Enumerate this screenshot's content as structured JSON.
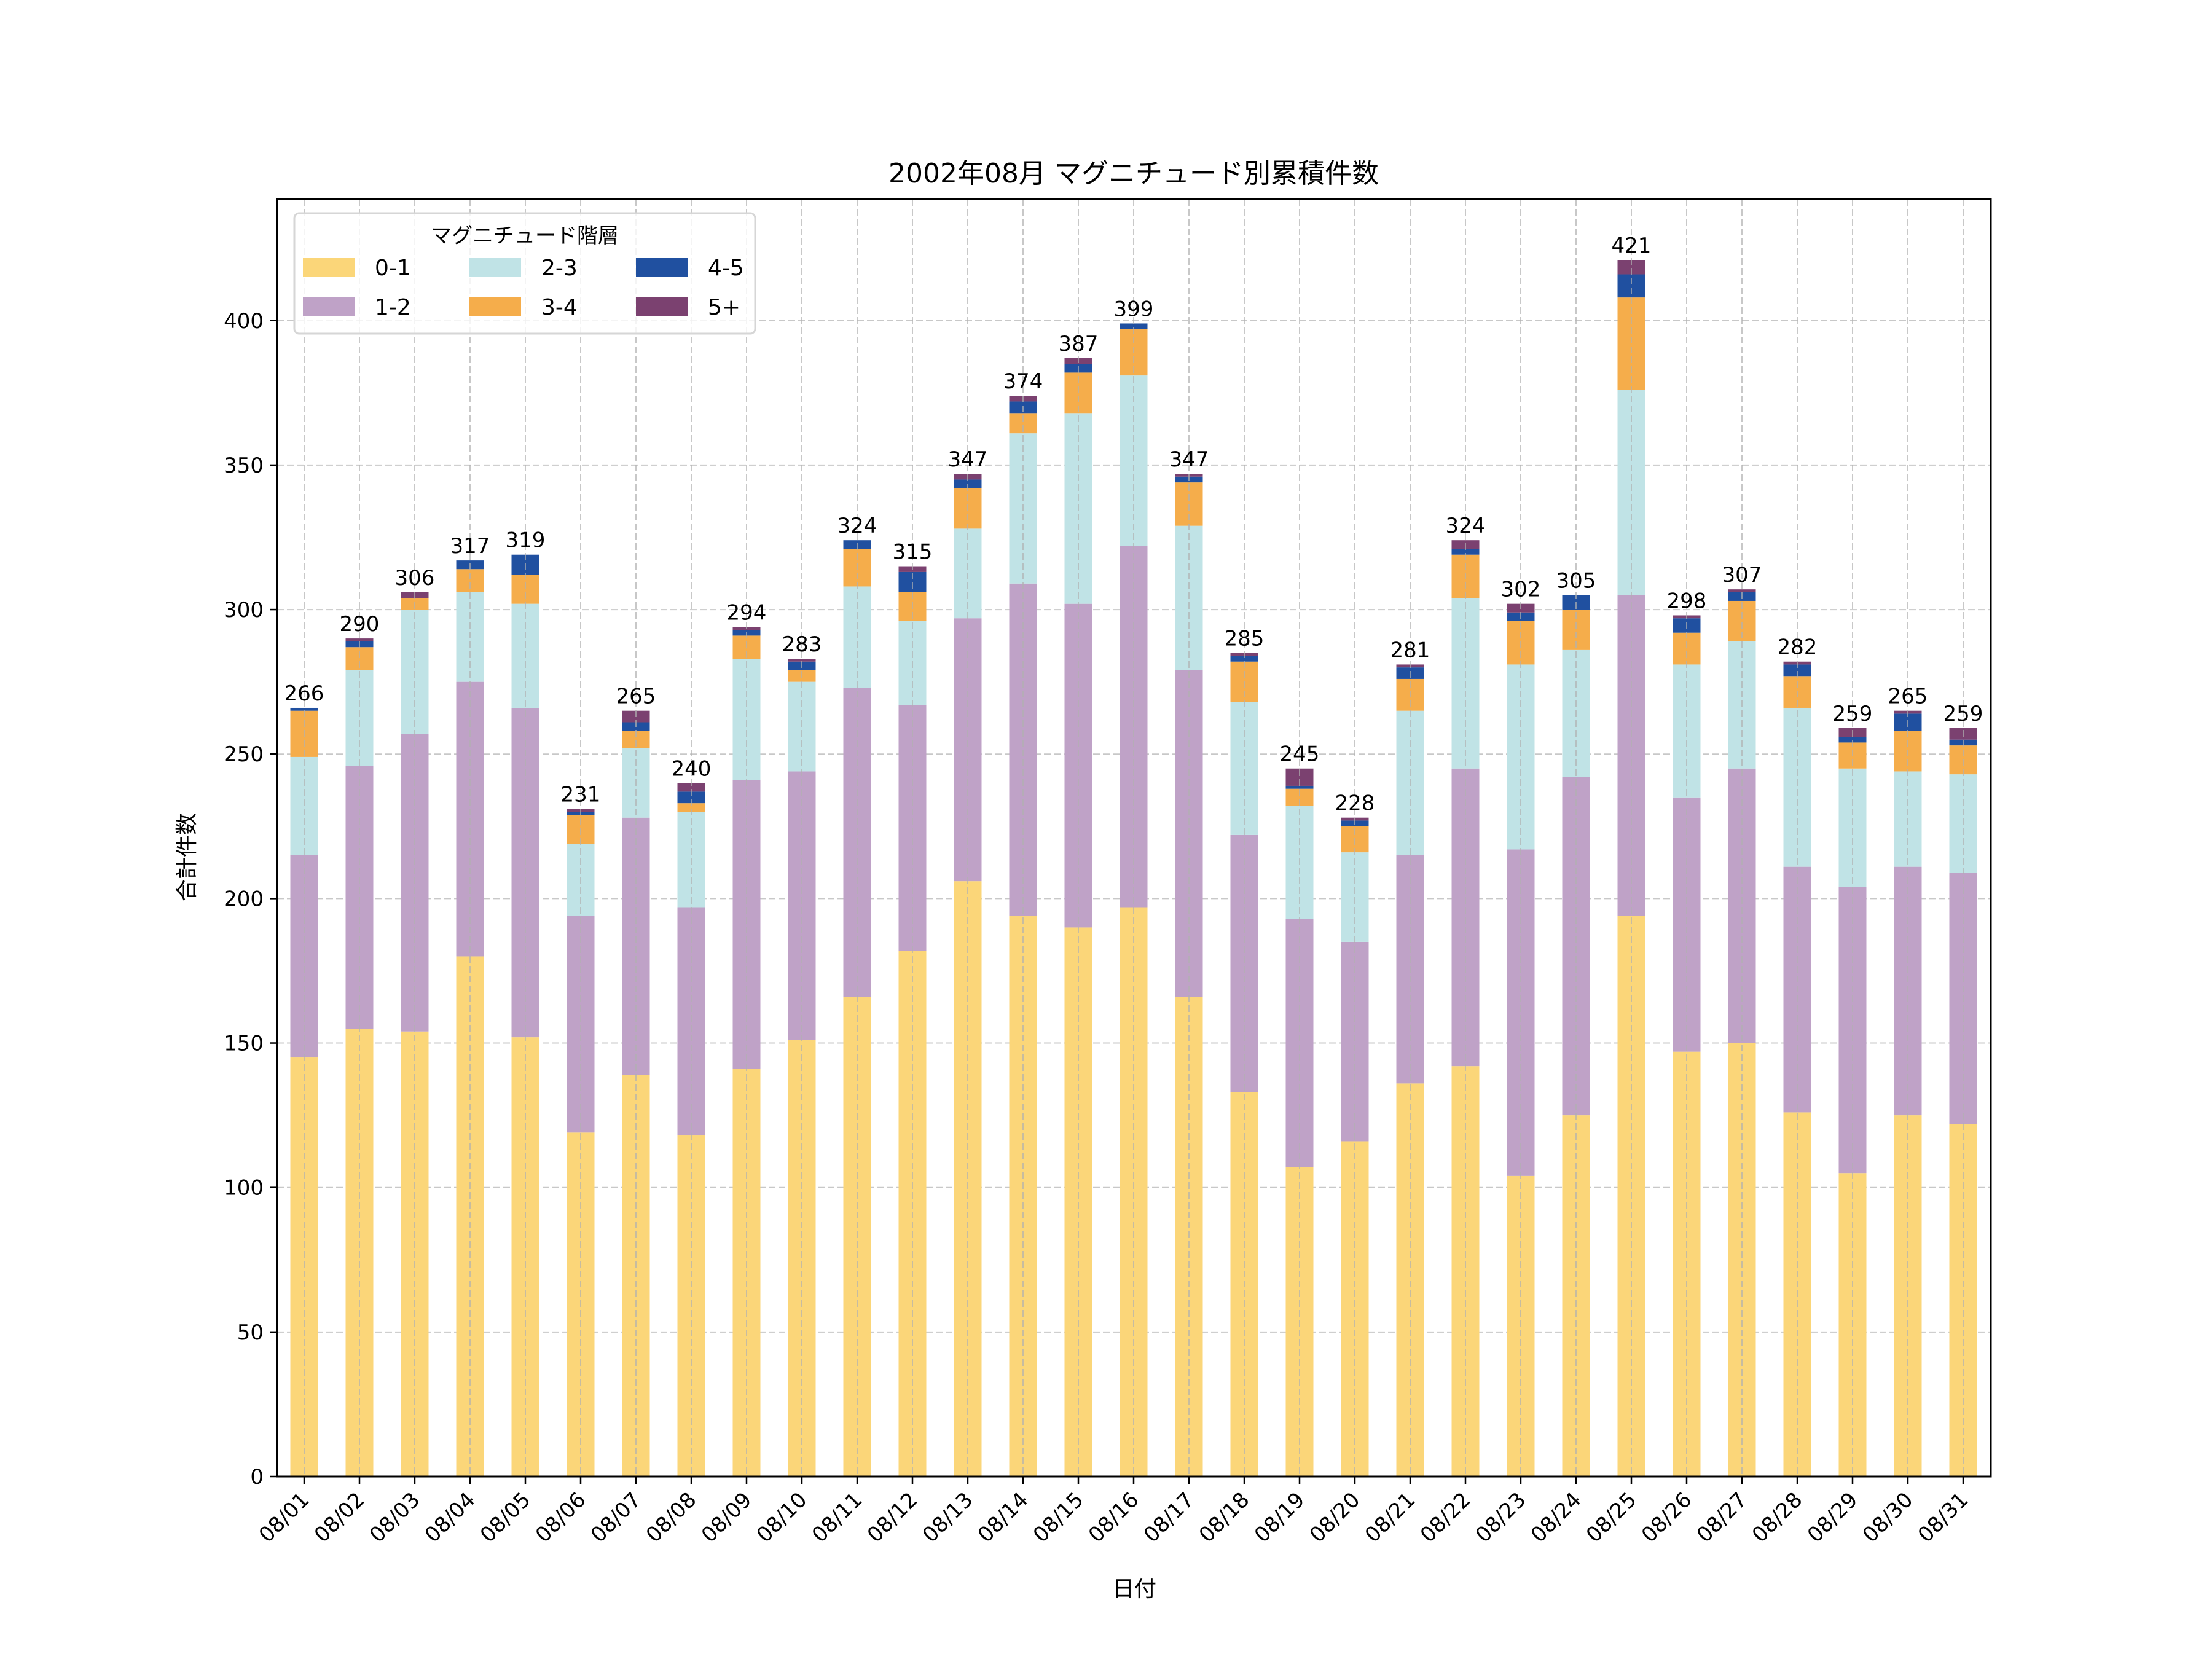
{
  "chart_data": {
    "type": "bar",
    "stacked": true,
    "title": "2002年08月 マグニチュード別累積件数",
    "xlabel": "日付",
    "ylabel": "合計件数",
    "ylim": [
      0,
      442.05
    ],
    "yticks": [
      0,
      50,
      100,
      150,
      200,
      250,
      300,
      350,
      400
    ],
    "grid": true,
    "legend": {
      "title": "マグニチュード階層",
      "position": "top-left",
      "columns": 3
    },
    "categories": [
      "08/01",
      "08/02",
      "08/03",
      "08/04",
      "08/05",
      "08/06",
      "08/07",
      "08/08",
      "08/09",
      "08/10",
      "08/11",
      "08/12",
      "08/13",
      "08/14",
      "08/15",
      "08/16",
      "08/17",
      "08/18",
      "08/19",
      "08/20",
      "08/21",
      "08/22",
      "08/23",
      "08/24",
      "08/25",
      "08/26",
      "08/27",
      "08/28",
      "08/29",
      "08/30",
      "08/31"
    ],
    "series": [
      {
        "name": "0-1",
        "color": "#fbd679",
        "values": [
          145,
          155,
          154,
          180,
          152,
          119,
          139,
          118,
          141,
          151,
          166,
          182,
          206,
          194,
          190,
          197,
          166,
          133,
          107,
          116,
          136,
          142,
          104,
          125,
          194,
          147,
          150,
          126,
          105,
          125,
          122
        ]
      },
      {
        "name": "1-2",
        "color": "#bfa2c7",
        "values": [
          70,
          91,
          103,
          95,
          114,
          75,
          89,
          79,
          100,
          93,
          107,
          85,
          91,
          115,
          112,
          125,
          113,
          89,
          86,
          69,
          79,
          103,
          113,
          117,
          111,
          88,
          95,
          85,
          99,
          86,
          87
        ]
      },
      {
        "name": "2-3",
        "color": "#c0e3e6",
        "values": [
          34,
          33,
          43,
          31,
          36,
          25,
          24,
          33,
          42,
          31,
          35,
          29,
          31,
          52,
          66,
          59,
          50,
          46,
          39,
          31,
          50,
          59,
          64,
          44,
          71,
          46,
          44,
          55,
          41,
          33,
          34
        ]
      },
      {
        "name": "3-4",
        "color": "#f5ad4b",
        "values": [
          16,
          8,
          4,
          8,
          10,
          10,
          6,
          3,
          8,
          4,
          13,
          10,
          14,
          7,
          14,
          16,
          15,
          14,
          6,
          9,
          11,
          15,
          15,
          14,
          32,
          11,
          14,
          11,
          9,
          14,
          10
        ]
      },
      {
        "name": "4-5",
        "color": "#2050a0",
        "values": [
          1,
          2,
          0,
          3,
          7,
          1,
          3,
          4,
          2,
          3,
          3,
          7,
          3,
          4,
          3,
          2,
          2,
          2,
          1,
          2,
          4,
          2,
          3,
          5,
          8,
          5,
          3,
          4,
          2,
          6,
          2
        ]
      },
      {
        "name": "5+",
        "color": "#7b4170",
        "values": [
          0,
          1,
          2,
          0,
          0,
          1,
          4,
          3,
          1,
          1,
          0,
          2,
          2,
          2,
          2,
          0,
          1,
          1,
          6,
          1,
          1,
          3,
          3,
          0,
          5,
          1,
          1,
          1,
          3,
          1,
          4
        ]
      }
    ],
    "totals": [
      266,
      290,
      306,
      317,
      319,
      231,
      265,
      240,
      294,
      283,
      324,
      315,
      347,
      374,
      387,
      399,
      347,
      285,
      245,
      228,
      281,
      324,
      302,
      305,
      421,
      298,
      307,
      282,
      259,
      265,
      259
    ]
  }
}
